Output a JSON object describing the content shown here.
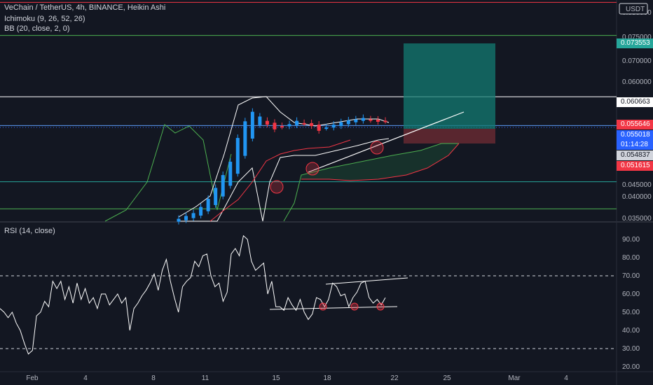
{
  "chart_data": [
    {
      "type": "candlestick",
      "title": "VeChain / TetherUS, 4h, BINANCE, Heikin Ashi",
      "indicators": [
        "Ichimoku (9, 26, 52, 26)",
        "BB (20, close, 2, 0)"
      ],
      "currency": "USDT",
      "y_ticks": [
        "0.080000",
        "0.075000",
        "0.070000",
        "0.060000",
        "0.045000",
        "0.040000",
        "0.035000"
      ],
      "ylim": [
        0.0345,
        0.081
      ],
      "x_ticks": [
        "Feb",
        "4",
        "8",
        "11",
        "15",
        "18",
        "22",
        "25",
        "Mar",
        "4"
      ],
      "price_tags": [
        {
          "value": "0.073553",
          "bg": "#26a69a",
          "fg": "#ffffff"
        },
        {
          "value": "0.060663",
          "bg": "#ffffff",
          "fg": "#131722"
        },
        {
          "value": "0.055646",
          "bg": "#f23645",
          "fg": "#ffffff"
        },
        {
          "value": "0.055018",
          "bg": "#2962ff",
          "fg": "#ffffff"
        },
        {
          "value": "01:14:28",
          "bg": "#2962ff",
          "fg": "#ffffff"
        },
        {
          "value": "0.054837",
          "bg": "#d1d4dc",
          "fg": "#131722"
        },
        {
          "value": "0.051615",
          "bg": "#f23645",
          "fg": "#ffffff"
        }
      ],
      "horizontal_lines": [
        {
          "value": 0.0805,
          "color": "#f23645"
        },
        {
          "value": 0.073553,
          "color": "#4caf50"
        },
        {
          "value": 0.060663,
          "color": "#ffffff"
        },
        {
          "value": 0.0546,
          "color": "#5b9cf6"
        },
        {
          "value": 0.0428,
          "color": "#26a69a"
        },
        {
          "value": 0.0371,
          "color": "#4caf50"
        }
      ],
      "position_tool": {
        "target": 0.073553,
        "entry": 0.0556,
        "stop": 0.0531
      },
      "close_series": [
        0.035,
        0.0356,
        0.0362,
        0.0375,
        0.0392,
        0.0415,
        0.0442,
        0.047,
        0.052,
        0.0555,
        0.0575,
        0.0565,
        0.0548,
        0.0538,
        0.0544,
        0.0549,
        0.0556,
        0.0551,
        0.0545,
        0.0535,
        0.0542,
        0.0548,
        0.0553,
        0.0557,
        0.0559,
        0.0562,
        0.0558,
        0.0554,
        0.0556
      ]
    },
    {
      "type": "line",
      "title": "RSI (14, close)",
      "y_ticks": [
        "90.00",
        "80.00",
        "70.00",
        "60.00",
        "50.00",
        "40.00",
        "30.00",
        "20.00"
      ],
      "ylim": [
        19,
        95
      ],
      "levels": [
        70,
        30
      ],
      "rsi": [
        52,
        50,
        47,
        50,
        44,
        40,
        33,
        27,
        29,
        48,
        50,
        56,
        53,
        67,
        63,
        67,
        57,
        64,
        55,
        66,
        57,
        63,
        55,
        58,
        52,
        60,
        60,
        54,
        57,
        60,
        55,
        58,
        40,
        52,
        55,
        59,
        62,
        66,
        71,
        62,
        73,
        79,
        67,
        58,
        50,
        64,
        67,
        69,
        78,
        75,
        81,
        82,
        70,
        64,
        66,
        56,
        61,
        82,
        85,
        81,
        92,
        90,
        78,
        73,
        75,
        77,
        60,
        67,
        53,
        53,
        51,
        58,
        54,
        51,
        57,
        50,
        46,
        49,
        58,
        57,
        53,
        57,
        66,
        64,
        59,
        60,
        53,
        58,
        61,
        66,
        67,
        58,
        55,
        57,
        54,
        58
      ]
    }
  ]
}
